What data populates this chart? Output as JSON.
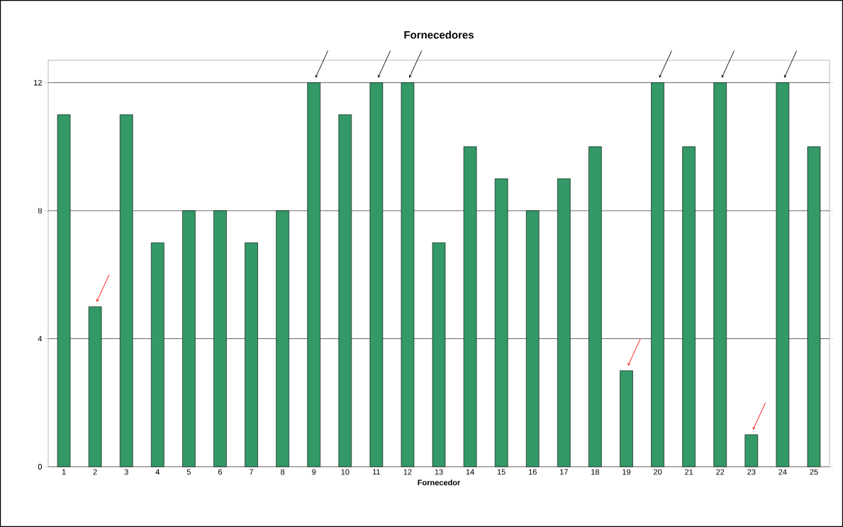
{
  "chart_data": {
    "type": "bar",
    "title": "Fornecedores",
    "xlabel": "Fornecedor",
    "categories": [
      "1",
      "2",
      "3",
      "4",
      "5",
      "6",
      "7",
      "8",
      "9",
      "10",
      "11",
      "12",
      "13",
      "14",
      "15",
      "16",
      "17",
      "18",
      "19",
      "20",
      "21",
      "22",
      "23",
      "24",
      "25"
    ],
    "values": [
      11,
      5,
      11,
      7,
      8,
      8,
      7,
      8,
      12,
      11,
      12,
      12,
      7,
      10,
      9,
      8,
      9,
      10,
      3,
      12,
      10,
      12,
      1,
      12,
      10
    ],
    "color": "#339966",
    "ylim": [
      0,
      12.7
    ],
    "yticks": [
      0,
      4,
      8,
      12
    ],
    "grid": "y"
  }
}
